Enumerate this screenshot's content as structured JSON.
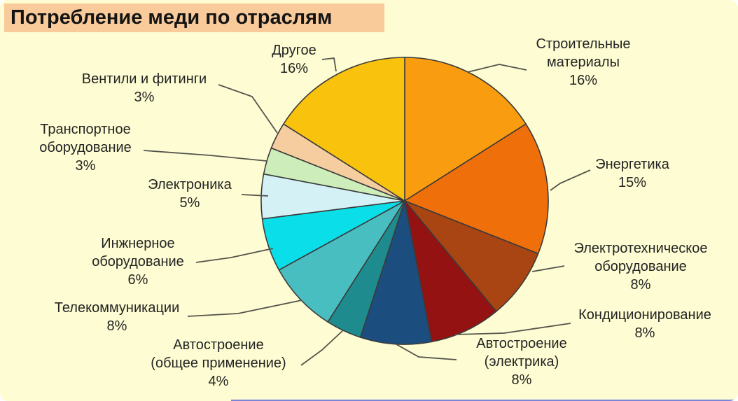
{
  "colors": {
    "canvas_bg": "#FDFCD2",
    "title_bg": "#F9CB9B",
    "slice_stroke": "#3B3B3B",
    "leader_line": "#54544C",
    "label_text": "#242424",
    "bottom_line": "#5A66D8"
  },
  "chart_data": {
    "type": "pie",
    "title": "Потребление меди по отраслям",
    "direction": "clockwise",
    "start_angle": "12-o-clock",
    "legend_position": "none",
    "slices": [
      {
        "label": "Строительные материалы",
        "pct": 16,
        "color": "#F99C10",
        "display": "Строительные\nматериалы\n16%"
      },
      {
        "label": "Энергетика",
        "pct": 15,
        "color": "#EF6F0A",
        "display": "Энергетика\n15%"
      },
      {
        "label": "Электротехническое оборудование",
        "pct": 8,
        "color": "#A84512",
        "display": "Электротехническое\nоборудование\n8%"
      },
      {
        "label": "Кондиционирование",
        "pct": 8,
        "color": "#951212",
        "display": "Кондиционирование\n8%"
      },
      {
        "label": "Автостроение (электрика)",
        "pct": 8,
        "color": "#1B4E7E",
        "display": "Автостроение\n(электрика)\n8%"
      },
      {
        "label": "Автостроение (общее применение)",
        "pct": 4,
        "color": "#1E8C8E",
        "display": "Автостроение\n(общее применение)\n4%"
      },
      {
        "label": "Телекоммуникации",
        "pct": 8,
        "color": "#49BEC0",
        "display": "Телекоммуникации\n8%"
      },
      {
        "label": "Инжнерное оборудование",
        "pct": 6,
        "color": "#0ADEE8",
        "display": "Инжнерное\nоборудование\n6%"
      },
      {
        "label": "Электроника",
        "pct": 5,
        "color": "#D4F1F6",
        "display": "Электроника\n5%"
      },
      {
        "label": "Транспортное оборудование",
        "pct": 3,
        "color": "#CDEDBA",
        "display": "Транспортное\nоборудование\n3%"
      },
      {
        "label": "Вентили и фитинги",
        "pct": 3,
        "color": "#F6CD9F",
        "display": "Вентили и фитинги\n3%"
      },
      {
        "label": "Другое",
        "pct": 16,
        "color": "#F9C20D",
        "display": "Другое\n16%"
      }
    ]
  }
}
